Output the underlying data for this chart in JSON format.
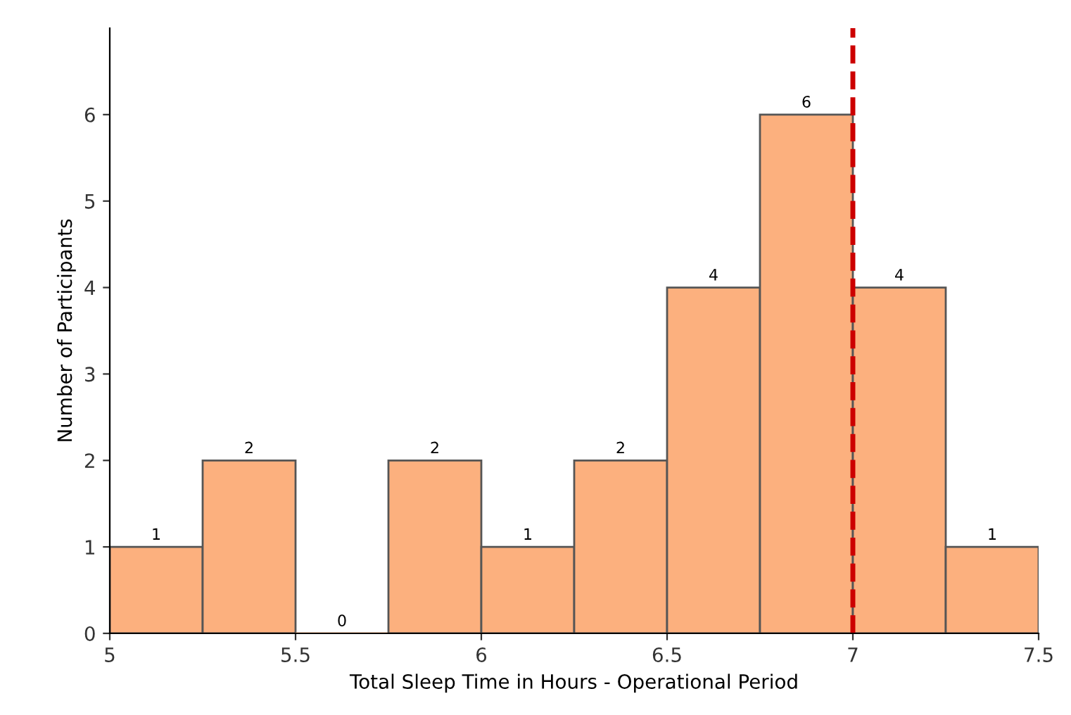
{
  "chart_data": {
    "type": "histogram",
    "xlabel": "Total Sleep Time in Hours - Operational Period",
    "ylabel": "Number of Participants",
    "bins": [
      5,
      5.25,
      5.5,
      5.75,
      6,
      6.25,
      6.5,
      6.75,
      7,
      7.25,
      7.5
    ],
    "values": [
      1,
      2,
      0,
      2,
      1,
      2,
      4,
      6,
      4,
      1
    ],
    "color": "#fcb07e",
    "data_labels": true,
    "grid": false,
    "legend": false,
    "xlim": [
      5,
      7.5
    ],
    "xticks": [
      5,
      5.5,
      6,
      6.5,
      7,
      7.5
    ],
    "ylim": [
      0,
      7
    ],
    "yticks": [
      0,
      1,
      2,
      3,
      4,
      5,
      6
    ],
    "ref_lines": [
      {
        "axis": "x",
        "value": 7,
        "color": "#cc0000",
        "line_style": "dashed"
      }
    ]
  }
}
